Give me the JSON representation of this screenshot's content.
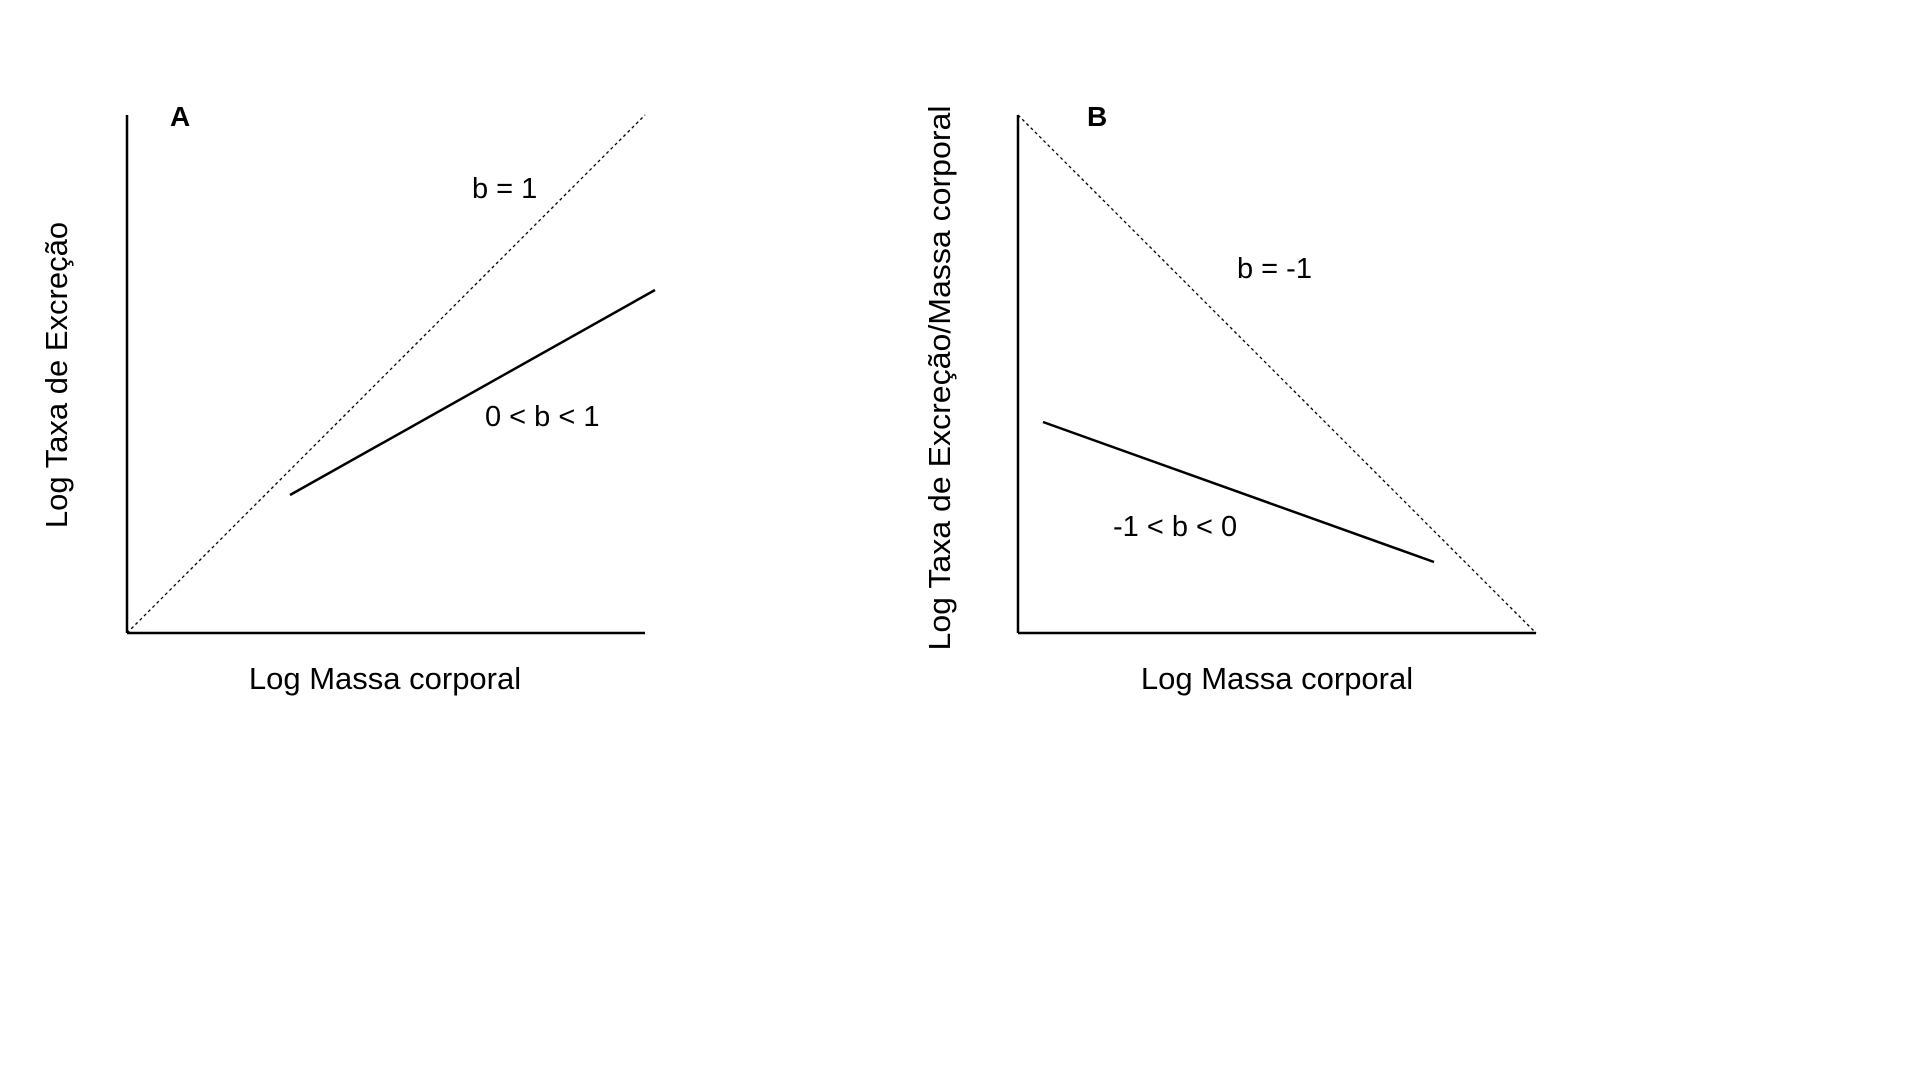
{
  "panels": [
    {
      "letter": "A",
      "xlabel": "Log Massa corporal",
      "ylabel": "Log Taxa de Excreção",
      "reference_line": {
        "label": "b = 1",
        "style": "dashed"
      },
      "example_line": {
        "label": "0 < b < 1",
        "style": "solid"
      }
    },
    {
      "letter": "B",
      "xlabel": "Log Massa corporal",
      "ylabel": "Log Taxa de Excreção/Massa corporal",
      "reference_line": {
        "label": "b = -1",
        "style": "dashed"
      },
      "example_line": {
        "label": "-1 < b < 0",
        "style": "solid"
      }
    }
  ],
  "colors": {
    "ink": "#000000",
    "background": "#ffffff"
  }
}
